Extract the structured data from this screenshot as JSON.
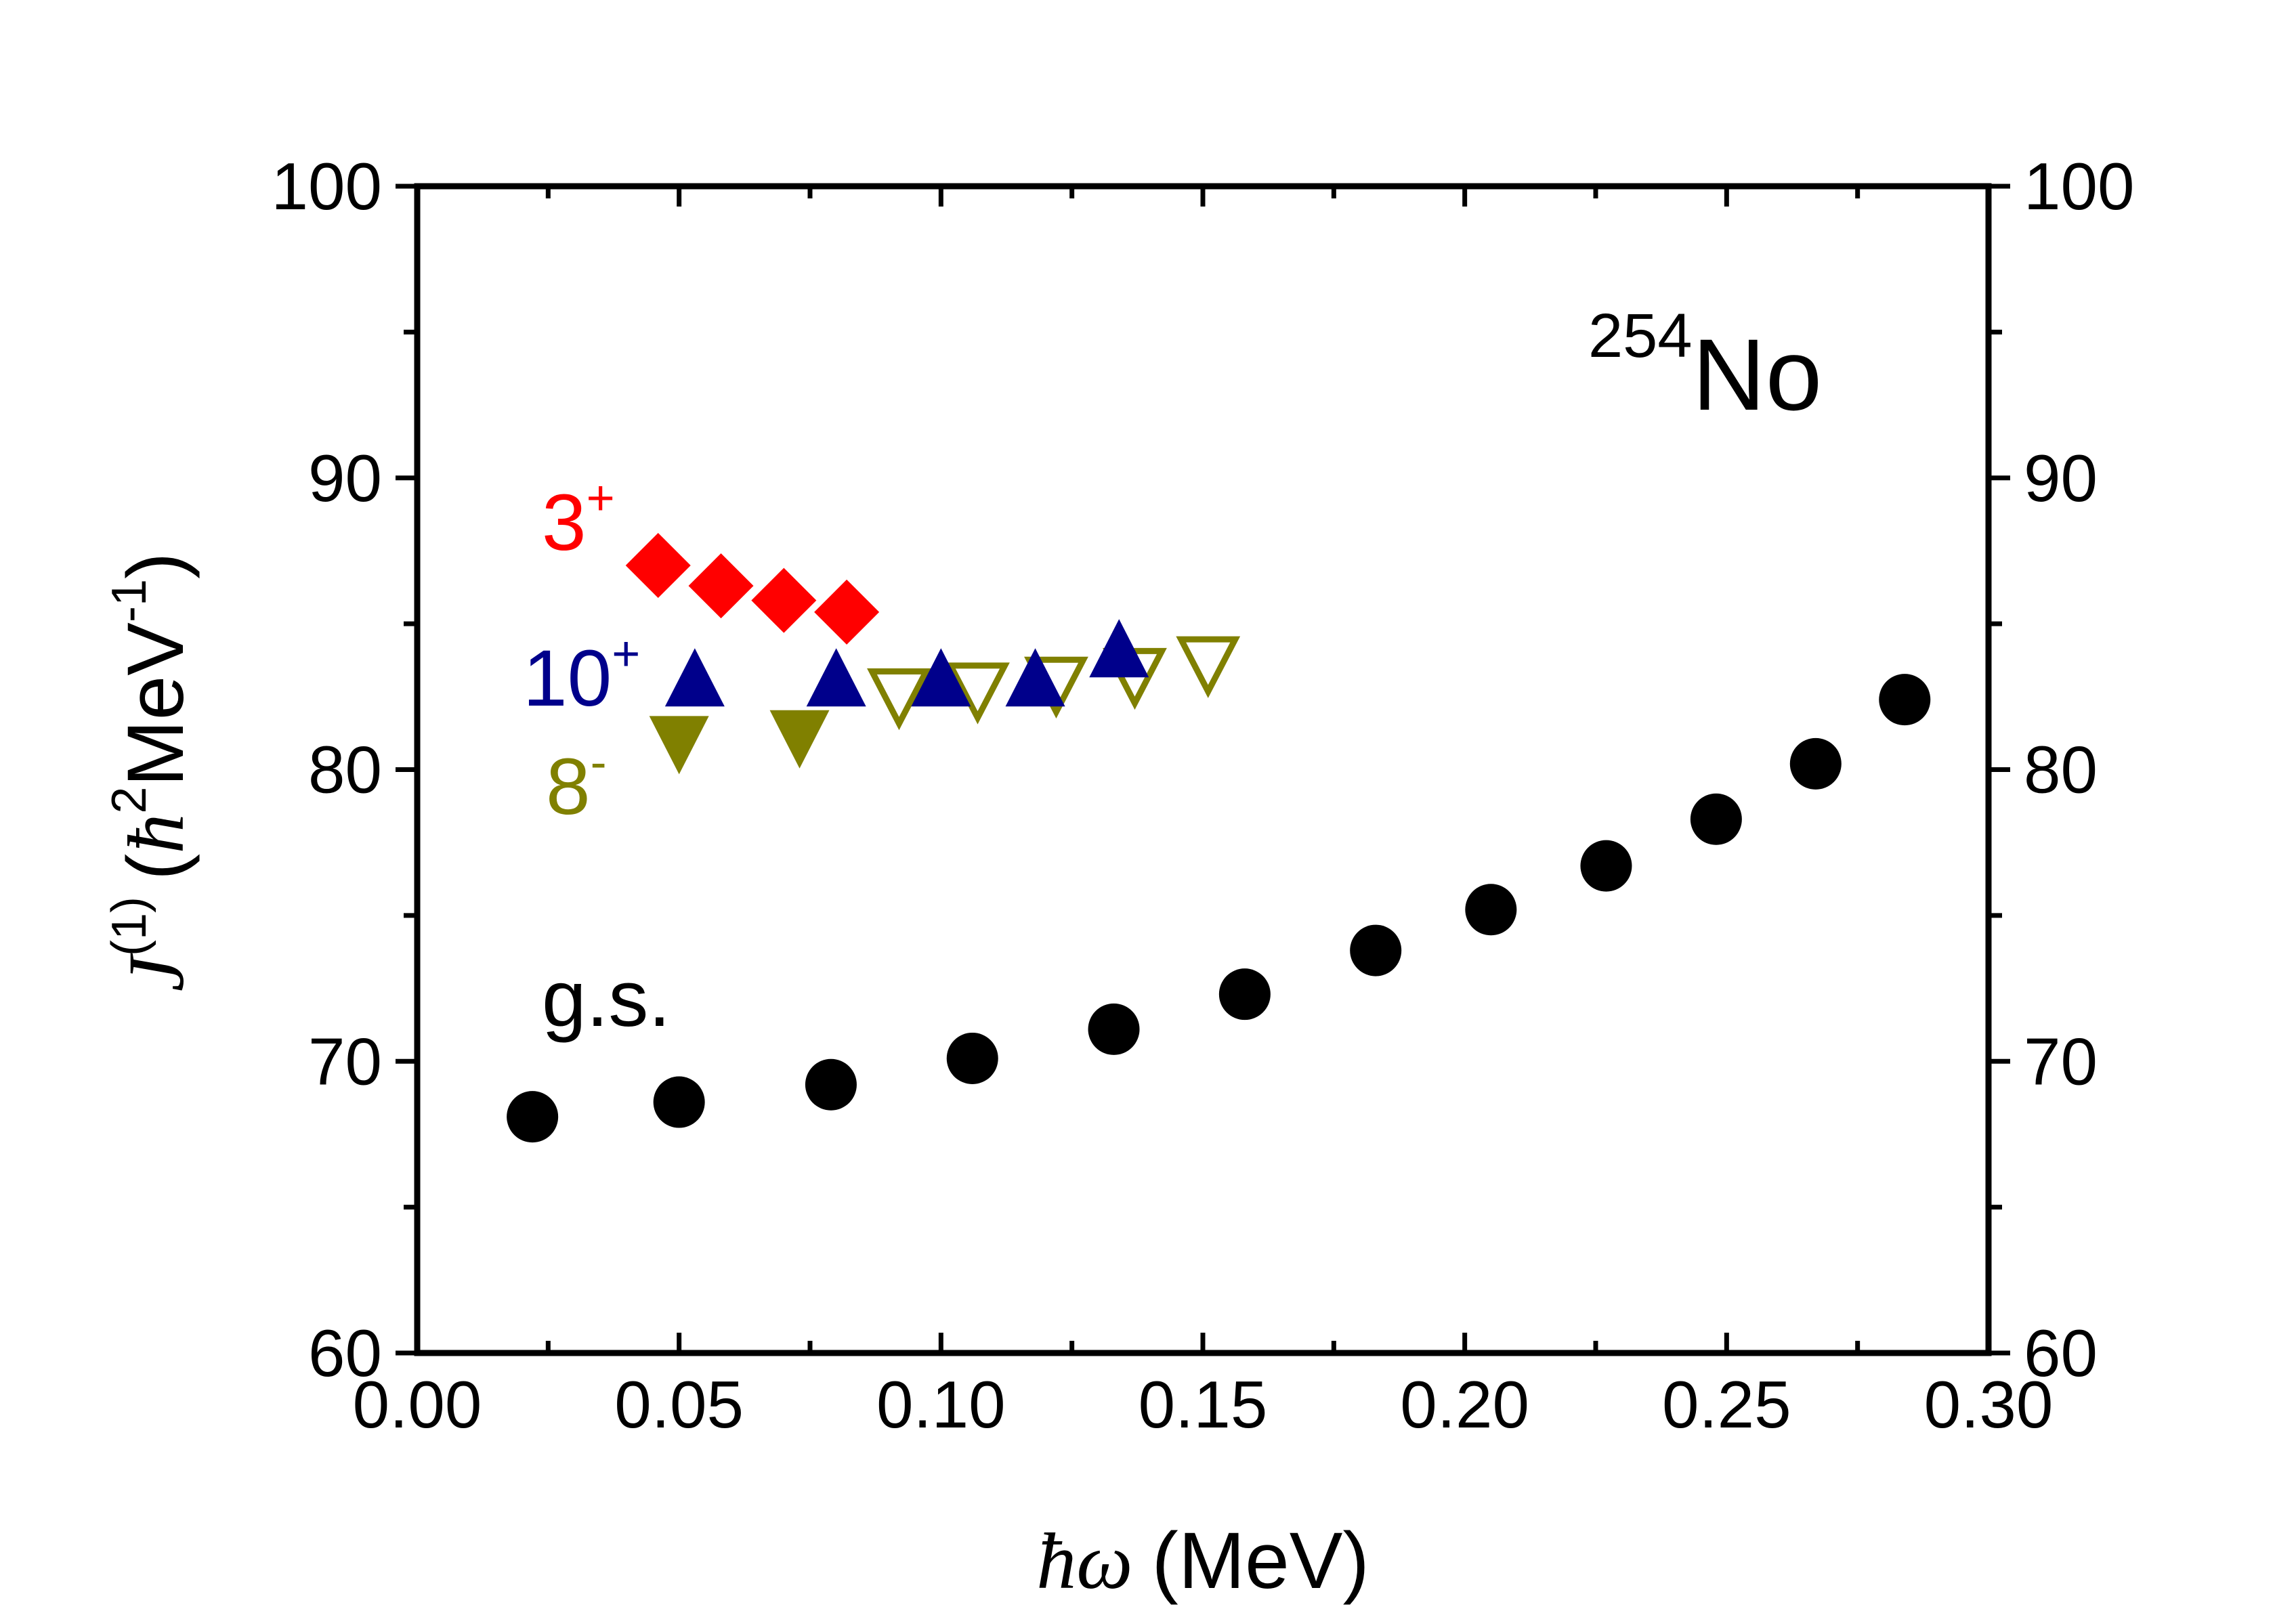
{
  "chart_data": {
    "type": "scatter",
    "nucleus": {
      "mass": "254",
      "symbol": "No"
    },
    "xlabel": {
      "symbol": "ħω",
      "unit": "(MeV)"
    },
    "ylabel": {
      "symbol": "J",
      "superscript": "(1)",
      "unit_open": "(",
      "hbar": "ħ",
      "hbar_power": "2",
      "unit_text": "MeV",
      "unit_power": "-1",
      "unit_close": ")"
    },
    "xlim": [
      0.0,
      0.3
    ],
    "ylim": [
      60,
      100
    ],
    "x_ticks": [
      "0.00",
      "0.05",
      "0.10",
      "0.15",
      "0.20",
      "0.25",
      "0.30"
    ],
    "y_ticks": [
      "60",
      "70",
      "80",
      "90",
      "100"
    ],
    "grid": false,
    "series": [
      {
        "name": "g.s.",
        "marker": "circle",
        "color": "#000000",
        "x": [
          0.022,
          0.05,
          0.079,
          0.106,
          0.133,
          0.158,
          0.183,
          0.205,
          0.227,
          0.248,
          0.267,
          0.284
        ],
        "y": [
          68.1,
          68.6,
          69.2,
          70.1,
          71.1,
          72.3,
          73.8,
          75.2,
          76.7,
          78.3,
          80.2,
          82.4
        ]
      },
      {
        "name": "3",
        "sup": "+",
        "marker": "diamond",
        "color": "#ff0000",
        "x": [
          0.046,
          0.058,
          0.07,
          0.082
        ],
        "y": [
          87.0,
          86.3,
          85.8,
          85.4
        ]
      },
      {
        "name": "10",
        "sup": "+",
        "marker": "triangle-up",
        "color": "#00008b",
        "x": [
          0.053,
          0.08,
          0.1,
          0.118,
          0.134
        ],
        "y": [
          83.0,
          83.0,
          83.0,
          83.0,
          84.0
        ]
      },
      {
        "name": "8",
        "sup": "-",
        "marker": "triangle-down-filled",
        "color": "#808000",
        "x": [
          0.05,
          0.073
        ],
        "y": [
          81.0,
          81.2
        ]
      },
      {
        "name": "8-open",
        "marker": "triangle-down-open",
        "color": "#808000",
        "x": [
          0.092,
          0.107,
          0.122,
          0.137,
          0.151
        ],
        "y": [
          82.6,
          82.8,
          83.0,
          83.3,
          83.7
        ]
      }
    ]
  }
}
